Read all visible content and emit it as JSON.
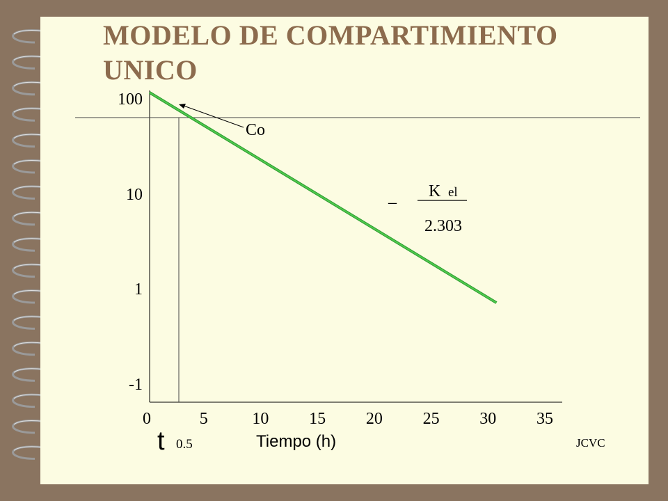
{
  "title": "MODELO DE COMPARTIMIENTO\nUNICO",
  "footer": "JCVC",
  "chart_data": {
    "type": "line",
    "title": "MODELO DE COMPARTIMIENTO UNICO",
    "xlabel": "Tiempo (h)",
    "ylabel": "",
    "x_ticks": [
      "0",
      "5",
      "10",
      "15",
      "20",
      "25",
      "30",
      "35"
    ],
    "y_ticks": [
      "100",
      "10",
      "1",
      "-1"
    ],
    "xlim": [
      0,
      35
    ],
    "series": [
      {
        "x": [
          0,
          30.5
        ],
        "y": [
          100,
          0.5
        ],
        "color": "#4ec94e"
      }
    ],
    "annotations": {
      "co": "Co",
      "minus": "_",
      "k": "K",
      "k_sub": "el",
      "denominator": "2.303",
      "t": "t",
      "t_sub": "0.5"
    }
  }
}
